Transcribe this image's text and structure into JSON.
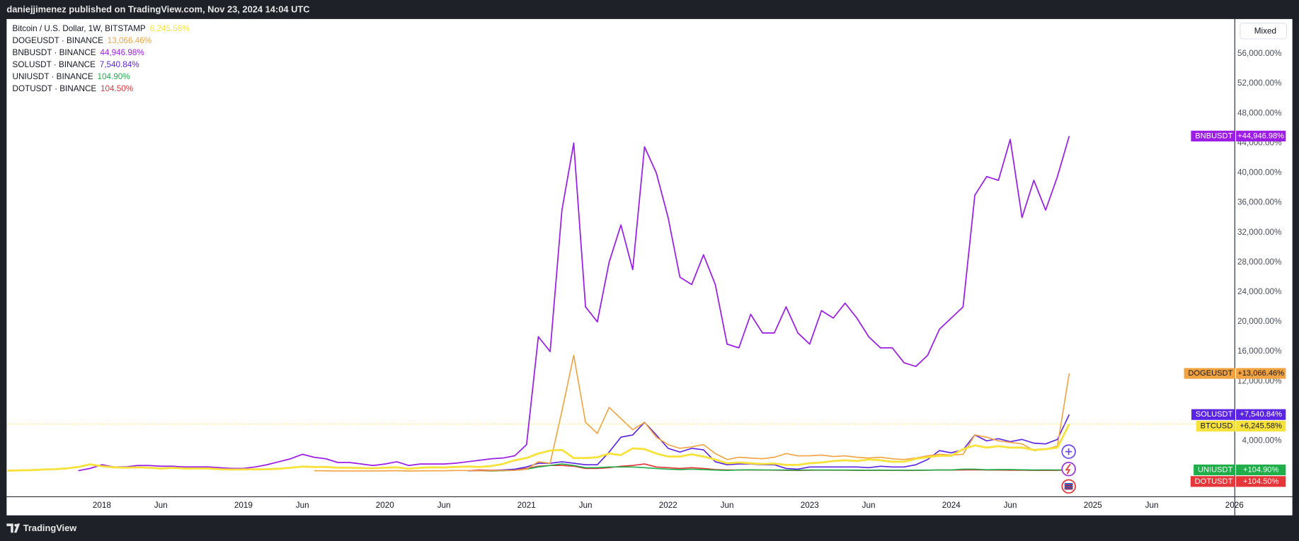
{
  "header": {
    "text": "daniejjimenez published on TradingView.com, Nov 23, 2024 14:04 UTC"
  },
  "footer": {
    "brand": "TradingView"
  },
  "chart_data": {
    "type": "line",
    "scale_mode": "Mixed",
    "x": [
      "2017-05",
      "2017-06",
      "2017-07",
      "2017-08",
      "2017-09",
      "2017-10",
      "2017-11",
      "2017-12",
      "2018-01",
      "2018-02",
      "2018-03",
      "2018-04",
      "2018-05",
      "2018-06",
      "2018-07",
      "2018-08",
      "2018-09",
      "2018-10",
      "2018-11",
      "2018-12",
      "2019-01",
      "2019-02",
      "2019-03",
      "2019-04",
      "2019-05",
      "2019-06",
      "2019-07",
      "2019-08",
      "2019-09",
      "2019-10",
      "2019-11",
      "2019-12",
      "2020-01",
      "2020-02",
      "2020-03",
      "2020-04",
      "2020-05",
      "2020-06",
      "2020-07",
      "2020-08",
      "2020-09",
      "2020-10",
      "2020-11",
      "2020-12",
      "2021-01",
      "2021-02",
      "2021-03",
      "2021-04",
      "2021-05",
      "2021-06",
      "2021-07",
      "2021-08",
      "2021-09",
      "2021-10",
      "2021-11",
      "2021-12",
      "2022-01",
      "2022-02",
      "2022-03",
      "2022-04",
      "2022-05",
      "2022-06",
      "2022-07",
      "2022-08",
      "2022-09",
      "2022-10",
      "2022-11",
      "2022-12",
      "2023-01",
      "2023-02",
      "2023-03",
      "2023-04",
      "2023-05",
      "2023-06",
      "2023-07",
      "2023-08",
      "2023-09",
      "2023-10",
      "2023-11",
      "2023-12",
      "2024-01",
      "2024-02",
      "2024-03",
      "2024-04",
      "2024-05",
      "2024-06",
      "2024-07",
      "2024-08",
      "2024-09",
      "2024-10",
      "2024-11"
    ],
    "series": [
      {
        "name": "Bitcoin / U.S. Dollar, 1W, BITSTAMP",
        "tag": "BTCUSD",
        "legend_label": "6,245.58%",
        "axis_label": "+6,245.58%",
        "color": "#f7e23b",
        "price_line": true,
        "values": [
          0,
          50,
          70,
          150,
          200,
          300,
          500,
          850,
          600,
          450,
          400,
          450,
          400,
          300,
          380,
          300,
          300,
          300,
          200,
          150,
          170,
          180,
          200,
          260,
          400,
          550,
          500,
          500,
          400,
          400,
          350,
          330,
          400,
          450,
          260,
          400,
          450,
          430,
          500,
          560,
          500,
          620,
          900,
          1400,
          1700,
          2300,
          2700,
          2800,
          1700,
          1700,
          1800,
          2300,
          2100,
          3000,
          2900,
          2300,
          1900,
          1900,
          2200,
          1900,
          1500,
          1000,
          1100,
          1000,
          900,
          950,
          780,
          780,
          1000,
          1100,
          1300,
          1400,
          1300,
          1500,
          1400,
          1200,
          1200,
          1600,
          1800,
          2000,
          2000,
          2900,
          3400,
          3100,
          3300,
          3100,
          3100,
          2800,
          2900,
          3100,
          6245.58
        ]
      },
      {
        "name": "DOGEUSDT · BINANCE",
        "tag": "DOGEUSDT",
        "legend_label": "13,066.46%",
        "axis_label": "+13,066.46%",
        "color": "#f2a341",
        "values": [
          null,
          null,
          null,
          null,
          null,
          null,
          null,
          null,
          null,
          null,
          null,
          null,
          null,
          null,
          null,
          null,
          null,
          null,
          null,
          null,
          null,
          null,
          null,
          null,
          null,
          null,
          0,
          -20,
          -30,
          -30,
          -30,
          -30,
          -20,
          0,
          -40,
          -20,
          -10,
          -10,
          30,
          20,
          0,
          0,
          30,
          50,
          200,
          1200,
          1000,
          8000,
          15500,
          6500,
          5000,
          8500,
          7000,
          5500,
          6500,
          4500,
          3500,
          3000,
          3200,
          3500,
          2300,
          1500,
          1800,
          1700,
          1600,
          1800,
          2300,
          2000,
          2000,
          2100,
          1900,
          2000,
          1800,
          1700,
          1800,
          1600,
          1500,
          1700,
          2000,
          2200,
          2100,
          2200,
          4800,
          4500,
          4000,
          3800,
          3600,
          2700,
          2900,
          3300,
          13066.46
        ]
      },
      {
        "name": "BNBUSDT · BINANCE",
        "tag": "BNBUSDT",
        "legend_label": "44,946.98%",
        "axis_label": "+44,946.98%",
        "color": "#9c1ee6",
        "values": [
          null,
          null,
          null,
          null,
          null,
          null,
          0,
          300,
          800,
          500,
          500,
          700,
          700,
          600,
          600,
          500,
          500,
          500,
          400,
          300,
          300,
          500,
          800,
          1200,
          1600,
          2200,
          1800,
          1600,
          1100,
          1100,
          900,
          700,
          900,
          1200,
          700,
          900,
          900,
          900,
          1000,
          1200,
          1400,
          1600,
          1700,
          2000,
          3500,
          18000,
          16000,
          35000,
          44000,
          22000,
          20000,
          28000,
          33000,
          27000,
          43500,
          40000,
          34000,
          26000,
          25000,
          29000,
          25000,
          17000,
          16500,
          21000,
          18500,
          18500,
          22000,
          18500,
          17000,
          21500,
          20500,
          22500,
          20500,
          18000,
          16500,
          16500,
          14500,
          14000,
          15500,
          19000,
          20500,
          22000,
          37000,
          39500,
          39000,
          44500,
          34000,
          39000,
          35000,
          39500,
          44946.98
        ]
      },
      {
        "name": "SOLUSDT · BINANCE",
        "tag": "SOLUSDT",
        "legend_label": "7,540.84%",
        "axis_label": "+7,540.84%",
        "color": "#5b24e4",
        "values": [
          null,
          null,
          null,
          null,
          null,
          null,
          null,
          null,
          null,
          null,
          null,
          null,
          null,
          null,
          null,
          null,
          null,
          null,
          null,
          null,
          null,
          null,
          null,
          null,
          null,
          null,
          null,
          null,
          null,
          null,
          null,
          null,
          null,
          null,
          null,
          null,
          null,
          null,
          null,
          0,
          0,
          0,
          100,
          200,
          500,
          1000,
          1000,
          1200,
          1000,
          800,
          800,
          2500,
          4500,
          4800,
          6500,
          4800,
          3000,
          2500,
          3000,
          2800,
          1200,
          800,
          900,
          900,
          800,
          800,
          300,
          200,
          500,
          500,
          500,
          500,
          500,
          400,
          600,
          500,
          500,
          800,
          1500,
          2700,
          2400,
          2800,
          4800,
          4000,
          4300,
          3900,
          4200,
          3700,
          3600,
          4200,
          7540.84
        ]
      },
      {
        "name": "UNIUSDT · BINANCE",
        "tag": "UNIUSDT",
        "legend_label": "104.90%",
        "axis_label": "+104.90%",
        "color": "#1fae4a",
        "values": [
          null,
          null,
          null,
          null,
          null,
          null,
          null,
          null,
          null,
          null,
          null,
          null,
          null,
          null,
          null,
          null,
          null,
          null,
          null,
          null,
          null,
          null,
          null,
          null,
          null,
          null,
          null,
          null,
          null,
          null,
          null,
          null,
          null,
          null,
          null,
          null,
          null,
          null,
          null,
          null,
          0,
          -50,
          0,
          50,
          200,
          500,
          700,
          900,
          700,
          400,
          400,
          500,
          500,
          500,
          400,
          300,
          200,
          150,
          200,
          150,
          80,
          40,
          100,
          120,
          100,
          100,
          80,
          70,
          100,
          100,
          80,
          80,
          70,
          60,
          80,
          60,
          60,
          60,
          80,
          100,
          100,
          200,
          200,
          120,
          150,
          150,
          120,
          90,
          110,
          100,
          104.9
        ]
      },
      {
        "name": "DOTUSDT · BINANCE",
        "tag": "DOTUSDT",
        "legend_label": "104.50%",
        "axis_label": "+104.50%",
        "color": "#e5363a",
        "values": [
          null,
          null,
          null,
          null,
          null,
          null,
          null,
          null,
          null,
          null,
          null,
          null,
          null,
          null,
          null,
          null,
          null,
          null,
          null,
          null,
          null,
          null,
          null,
          null,
          null,
          null,
          null,
          null,
          null,
          null,
          null,
          null,
          null,
          null,
          null,
          null,
          null,
          null,
          null,
          0,
          100,
          50,
          80,
          120,
          300,
          600,
          700,
          700,
          600,
          300,
          300,
          400,
          600,
          700,
          900,
          500,
          400,
          300,
          400,
          300,
          150,
          100,
          100,
          100,
          80,
          70,
          50,
          30,
          60,
          70,
          60,
          60,
          40,
          40,
          50,
          40,
          30,
          40,
          60,
          100,
          80,
          100,
          120,
          80,
          80,
          60,
          60,
          40,
          40,
          40,
          104.5
        ]
      }
    ],
    "xlim": [
      "2017-05",
      "2026-01"
    ],
    "xticks": [
      {
        "value": "2018-01",
        "label": "2018"
      },
      {
        "value": "2018-06",
        "label": "Jun"
      },
      {
        "value": "2019-01",
        "label": "2019"
      },
      {
        "value": "2019-06",
        "label": "Jun"
      },
      {
        "value": "2020-01",
        "label": "2020"
      },
      {
        "value": "2020-06",
        "label": "Jun"
      },
      {
        "value": "2021-01",
        "label": "2021"
      },
      {
        "value": "2021-06",
        "label": "Jun"
      },
      {
        "value": "2022-01",
        "label": "2022"
      },
      {
        "value": "2022-06",
        "label": "Jun"
      },
      {
        "value": "2023-01",
        "label": "2023"
      },
      {
        "value": "2023-06",
        "label": "Jun"
      },
      {
        "value": "2024-01",
        "label": "2024"
      },
      {
        "value": "2024-06",
        "label": "Jun"
      },
      {
        "value": "2025-01",
        "label": "2025"
      },
      {
        "value": "2025-06",
        "label": "Jun"
      },
      {
        "value": "2026-01",
        "label": "2026"
      }
    ],
    "ylim": [
      -3444,
      60556
    ],
    "yticks": [
      {
        "value": 4000,
        "label": "4,000.00%"
      },
      {
        "value": 12000,
        "label": "12,000.00%"
      },
      {
        "value": 16000,
        "label": "16,000.00%"
      },
      {
        "value": 20000,
        "label": "20,000.00%"
      },
      {
        "value": 24000,
        "label": "24,000.00%"
      },
      {
        "value": 28000,
        "label": "28,000.00%"
      },
      {
        "value": 32000,
        "label": "32,000.00%"
      },
      {
        "value": 36000,
        "label": "36,000.00%"
      },
      {
        "value": 40000,
        "label": "40,000.00%"
      },
      {
        "value": 44000,
        "label": "44,000.00%"
      },
      {
        "value": 48000,
        "label": "48,000.00%"
      },
      {
        "value": 52000,
        "label": "52,000.00%"
      },
      {
        "value": 56000,
        "label": "56,000.00%"
      }
    ],
    "grid": false
  }
}
